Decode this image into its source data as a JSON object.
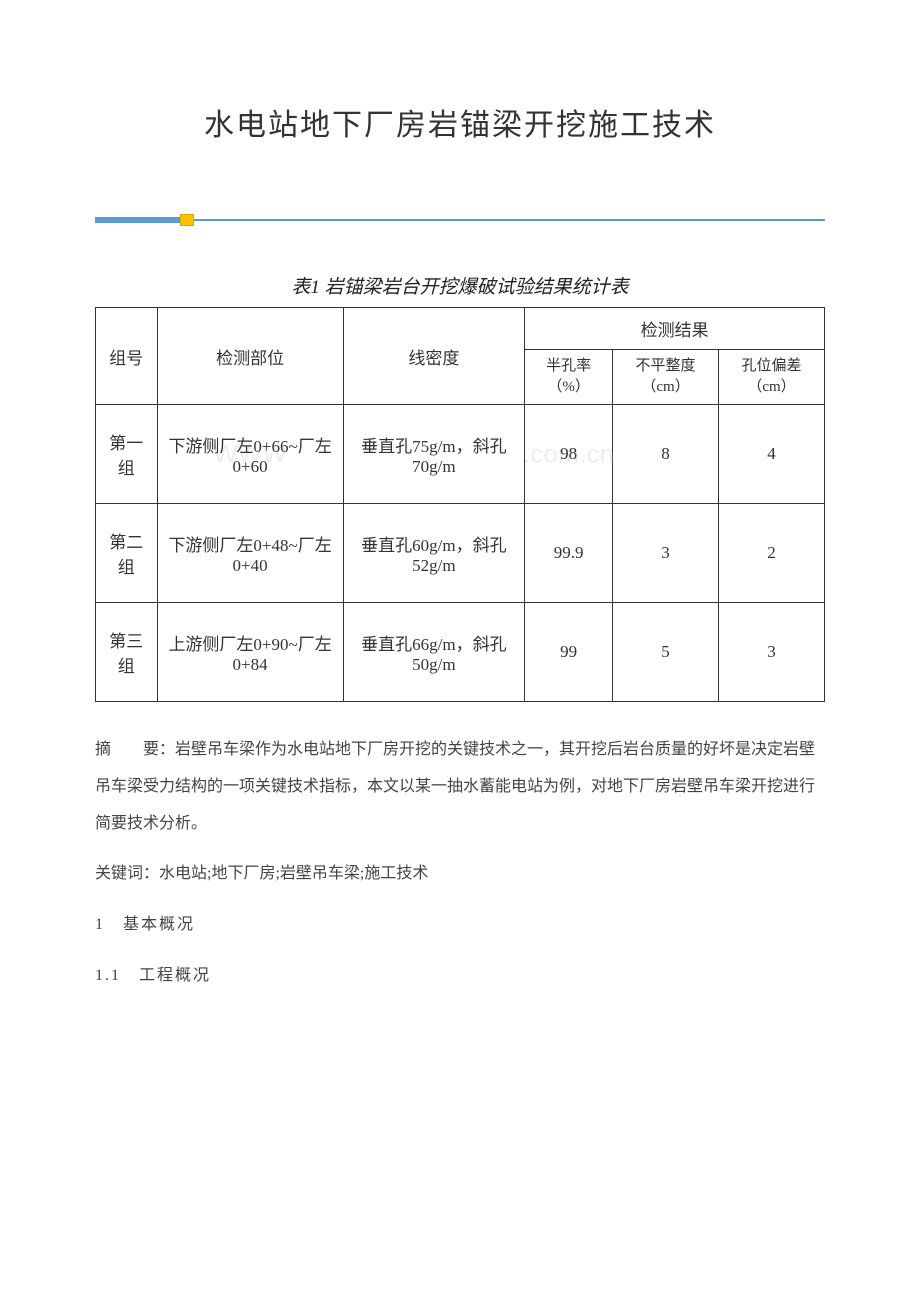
{
  "title": "水电站地下厂房岩锚梁开挖施工技术",
  "table": {
    "caption": "表1  岩锚梁岩台开挖爆破试验结果统计表",
    "headers": {
      "group": "组号",
      "location": "检测部位",
      "density": "线密度",
      "result_group": "检测结果",
      "half_hole": "半孔率（%）",
      "unevenness": "不平整度（cm）",
      "deviation": "孔位偏差（cm）"
    },
    "rows": [
      {
        "group": "第一组",
        "location": "下游侧厂左0+66~厂左0+60",
        "density": "垂直孔75g/m，斜孔70g/m",
        "half_hole": "98",
        "unevenness": "8",
        "deviation": "4"
      },
      {
        "group": "第二组",
        "location": "下游侧厂左0+48~厂左0+40",
        "density": "垂直孔60g/m，斜孔52g/m",
        "half_hole": "99.9",
        "unevenness": "3",
        "deviation": "2"
      },
      {
        "group": "第三组",
        "location": "上游侧厂左0+90~厂左0+84",
        "density": "垂直孔66g/m，斜孔50g/m",
        "half_hole": "99",
        "unevenness": "5",
        "deviation": "3"
      }
    ]
  },
  "watermark": {
    "left": "WWW",
    "right": ".com.cn"
  },
  "abstract": {
    "label": "摘　　要：",
    "text": "岩壁吊车梁作为水电站地下厂房开挖的关键技术之一，其开挖后岩台质量的好坏是决定岩壁吊车梁受力结构的一项关键技术指标，本文以某一抽水蓄能电站为例，对地下厂房岩壁吊车梁开挖进行简要技术分析。"
  },
  "keywords": {
    "label": "关键词：",
    "text": "水电站;地下厂房;岩壁吊车梁;施工技术"
  },
  "sections": {
    "s1": "1　基本概况",
    "s11": "1.1　工程概况"
  },
  "colors": {
    "divider_blue": "#5b9bd5",
    "divider_yellow": "#ffc000",
    "text_main": "#333333",
    "text_body": "#444444",
    "watermark": "#dddddd",
    "background": "#ffffff"
  }
}
